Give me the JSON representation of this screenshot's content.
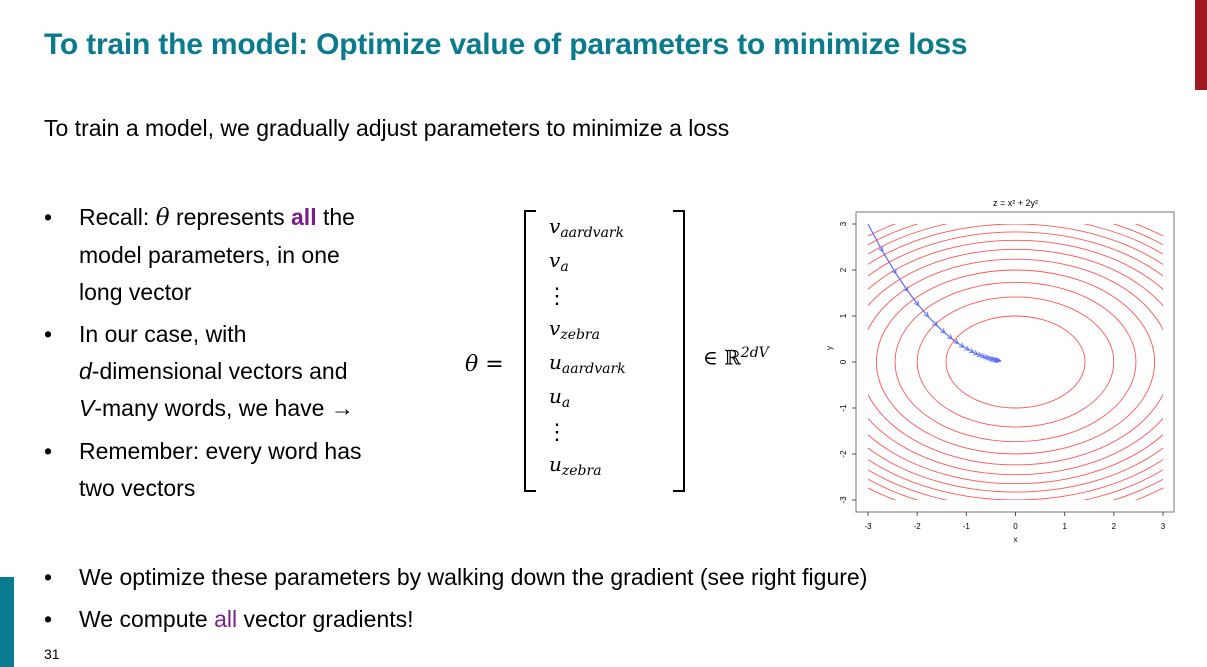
{
  "slide": {
    "title": "To train the model: Optimize value of parameters to minimize loss",
    "subtitle": "To train a model, we gradually adjust parameters to minimize a loss",
    "page_number": "31",
    "accent_color": "#0a7b8f",
    "highlight_color": "#7a1f8a",
    "bullets_left": [
      {
        "lines": [
          [
            "Recall: ",
            "θ",
            " represents ",
            "all",
            " the"
          ],
          [
            "model parameters, in one"
          ],
          [
            "long vector"
          ]
        ]
      },
      {
        "lines": [
          [
            "In our case, with"
          ],
          [
            "d",
            "-dimensional vectors and"
          ],
          [
            "V",
            "-many words, we have →"
          ]
        ]
      },
      {
        "lines": [
          [
            "Remember: every word has"
          ],
          [
            "two vectors"
          ]
        ]
      }
    ],
    "bullets_bottom": [
      [
        "We optimize these parameters by walking down the gradient (see right figure)"
      ],
      [
        "We compute ",
        "all",
        " vector gradients!"
      ]
    ],
    "bullet_char": "•"
  },
  "equation": {
    "lhs": "θ =",
    "entries": [
      {
        "base": "v",
        "sub": "aardvark"
      },
      {
        "base": "v",
        "sub": "a"
      },
      {
        "base": "⋮",
        "sub": ""
      },
      {
        "base": "v",
        "sub": "zebra"
      },
      {
        "base": "u",
        "sub": "aardvark"
      },
      {
        "base": "u",
        "sub": "a"
      },
      {
        "base": "⋮",
        "sub": ""
      },
      {
        "base": "u",
        "sub": "zebra"
      }
    ],
    "rhs": "∈ ℝ",
    "rhs_sup": "2dV"
  },
  "chart_data": {
    "type": "contour",
    "title": "z = x² + 2y²",
    "xlabel": "x",
    "ylabel": "y",
    "xlim": [
      -3,
      3
    ],
    "ylim": [
      -3,
      3
    ],
    "xticks": [
      "-3",
      "-2",
      "-1",
      "0",
      "1",
      "2",
      "3"
    ],
    "yticks": [
      "-3",
      "-2",
      "-1",
      "0",
      "1",
      "2",
      "3"
    ],
    "contour_levels": [
      2,
      4,
      6,
      8,
      10,
      12,
      14,
      16,
      18,
      20,
      22,
      24
    ],
    "contour_color": "#ff5555",
    "path_color": "#5b6cff",
    "gradient_path": {
      "start": [
        -3,
        3
      ],
      "learning_rate": 0.05,
      "steps": 22
    }
  }
}
